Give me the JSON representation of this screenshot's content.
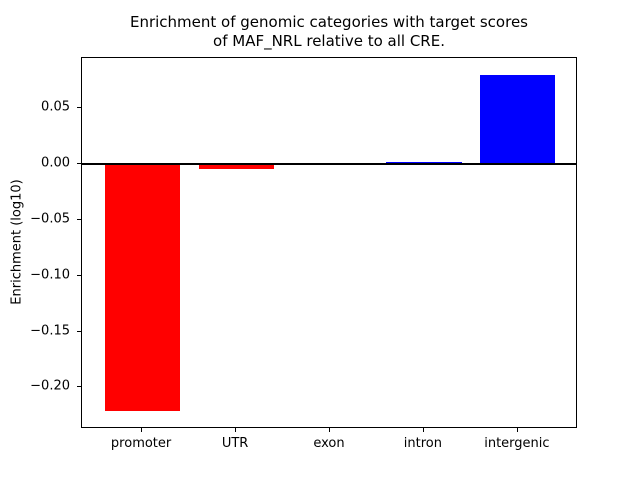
{
  "chart_data": {
    "type": "bar",
    "title_line1": "Enrichment of genomic categories with target scores",
    "title_line2": "of MAF_NRL relative to all CRE.",
    "ylabel": "Enrichment (log10)",
    "xlabel": "",
    "categories": [
      "promoter",
      "UTR",
      "exon",
      "intron",
      "intergenic"
    ],
    "values": [
      -0.221,
      -0.004,
      0.0,
      0.0015,
      0.08
    ],
    "bar_colors": [
      "#ff0000",
      "#ff0000",
      "#0000ff",
      "#0000ff",
      "#0000ff"
    ],
    "negative_color": "#ff0000",
    "positive_color": "#0000ff",
    "zero_line_color": "#000000",
    "background_color": "#ffffff",
    "bar_width": 0.8,
    "xlim": [
      -0.64,
      4.64
    ],
    "ylim": [
      -0.2373,
      0.0949
    ],
    "yticks": [
      {
        "value": 0.05,
        "label": "0.05"
      },
      {
        "value": 0.0,
        "label": "0.00"
      },
      {
        "value": -0.05,
        "label": "−0.05"
      },
      {
        "value": -0.1,
        "label": "−0.10"
      },
      {
        "value": -0.15,
        "label": "−0.15"
      },
      {
        "value": -0.2,
        "label": "−0.20"
      }
    ],
    "grid": false,
    "legend": false,
    "zero_line": true
  }
}
